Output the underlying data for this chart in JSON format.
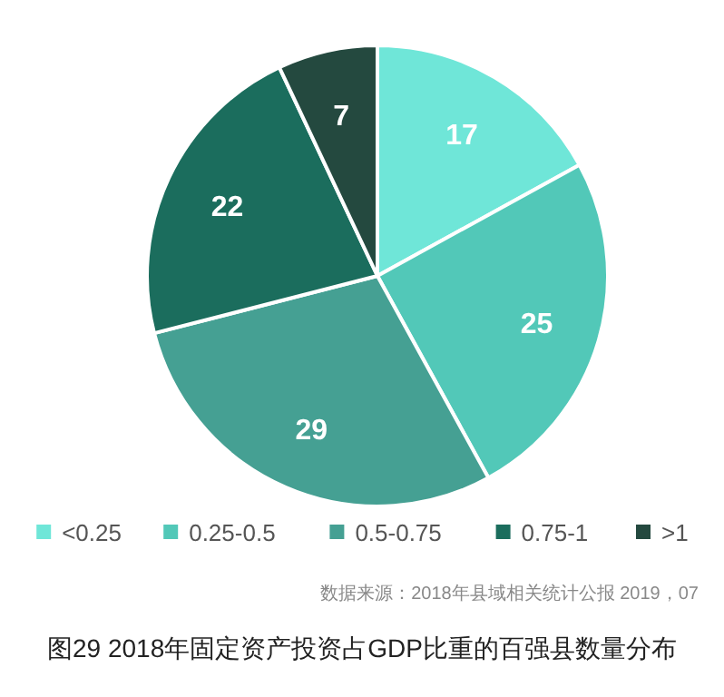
{
  "chart_data": {
    "type": "pie",
    "title": "图29 2018年固定资产投资占GDP比重的百强县数量分布",
    "annotations": [
      "数据来源：2018年县域相关统计公报 2019，07"
    ],
    "categories": [
      "<0.25",
      "0.25-0.5",
      "0.5-0.75",
      "0.75-1",
      ">1"
    ],
    "values": [
      17,
      25,
      29,
      22,
      7
    ],
    "colors": [
      "#6fe6d8",
      "#52c8b8",
      "#45a093",
      "#1b6d5d",
      "#24493f"
    ],
    "data_labels": true,
    "legend": "bottom"
  }
}
